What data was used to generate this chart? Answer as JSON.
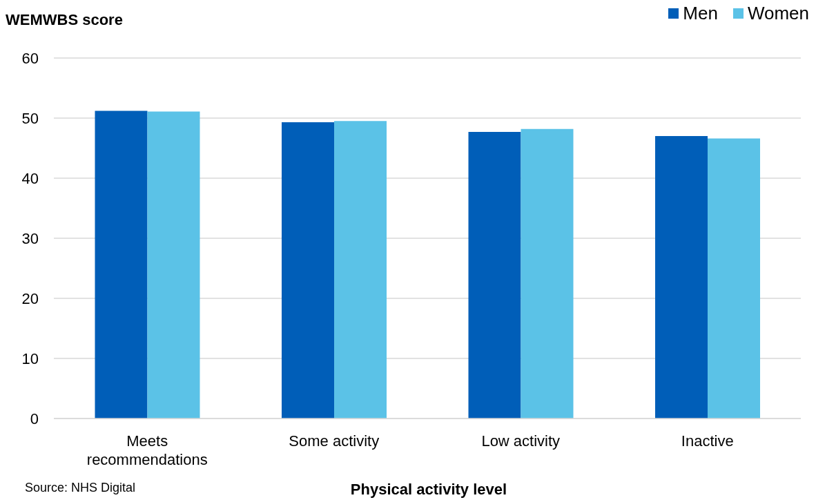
{
  "chart_data": {
    "type": "bar",
    "ylabel": "WEMWBS score",
    "xlabel": "Physical activity level",
    "categories": [
      "Meets recommendations",
      "Some activity",
      "Low activity",
      "Inactive"
    ],
    "series": [
      {
        "name": "Men",
        "color": "#005eb8",
        "values": [
          51.2,
          49.3,
          47.7,
          47.0
        ]
      },
      {
        "name": "Women",
        "color": "#5bc2e7",
        "values": [
          51.1,
          49.5,
          48.2,
          46.6
        ]
      }
    ],
    "ylim": [
      0,
      60
    ],
    "yticks": [
      0,
      10,
      20,
      30,
      40,
      50,
      60
    ],
    "grid": "y",
    "legend": "top right",
    "annotations": [
      "Source: NHS Digital"
    ]
  }
}
